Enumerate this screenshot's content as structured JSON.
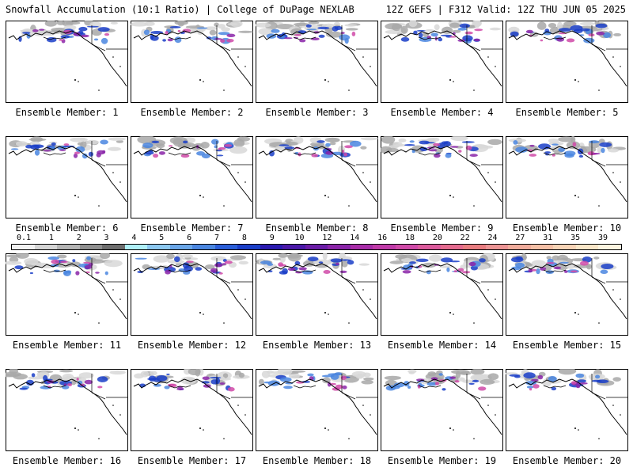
{
  "header": {
    "left": "Snowfall Accumulation (10:1 Ratio) | College of DuPage NEXLAB",
    "right": "12Z GEFS | F312 Valid: 12Z THU JUN 05 2025"
  },
  "panels": [
    {
      "label": "Ensemble Member: 1"
    },
    {
      "label": "Ensemble Member: 2"
    },
    {
      "label": "Ensemble Member: 3"
    },
    {
      "label": "Ensemble Member: 4"
    },
    {
      "label": "Ensemble Member: 5"
    },
    {
      "label": "Ensemble Member: 6"
    },
    {
      "label": "Ensemble Member: 7"
    },
    {
      "label": "Ensemble Member: 8"
    },
    {
      "label": "Ensemble Member: 9"
    },
    {
      "label": "Ensemble Member: 10"
    },
    {
      "label": "Ensemble Member: 11"
    },
    {
      "label": "Ensemble Member: 12"
    },
    {
      "label": "Ensemble Member: 13"
    },
    {
      "label": "Ensemble Member: 14"
    },
    {
      "label": "Ensemble Member: 15"
    },
    {
      "label": "Ensemble Member: 16"
    },
    {
      "label": "Ensemble Member: 17"
    },
    {
      "label": "Ensemble Member: 18"
    },
    {
      "label": "Ensemble Member: 19"
    },
    {
      "label": "Ensemble Member: 20"
    }
  ],
  "colorbar": {
    "labels": [
      "0.1",
      "1",
      "2",
      "3",
      "4",
      "5",
      "6",
      "7",
      "8",
      "9",
      "10",
      "12",
      "14",
      "16",
      "18",
      "20",
      "22",
      "24",
      "27",
      "31",
      "35",
      "39"
    ],
    "colors": [
      "#f2f2f2",
      "#d4d4d4",
      "#b4b4b4",
      "#8f8f8f",
      "#6e6e6e",
      "#b0f0f8",
      "#8cc8f0",
      "#6aa6e8",
      "#4a86e0",
      "#2a5ed8",
      "#1a3ec8",
      "#2a1ab0",
      "#4a18a8",
      "#6a1ca6",
      "#8a24a8",
      "#a82ca8",
      "#c03aa8",
      "#d04aa8",
      "#dc5a9c",
      "#e46a8e",
      "#e87c80",
      "#ec9494",
      "#f0ac9c",
      "#f4c0a6",
      "#f8d4b6",
      "#fae6c8",
      "#fdf4e0"
    ]
  }
}
